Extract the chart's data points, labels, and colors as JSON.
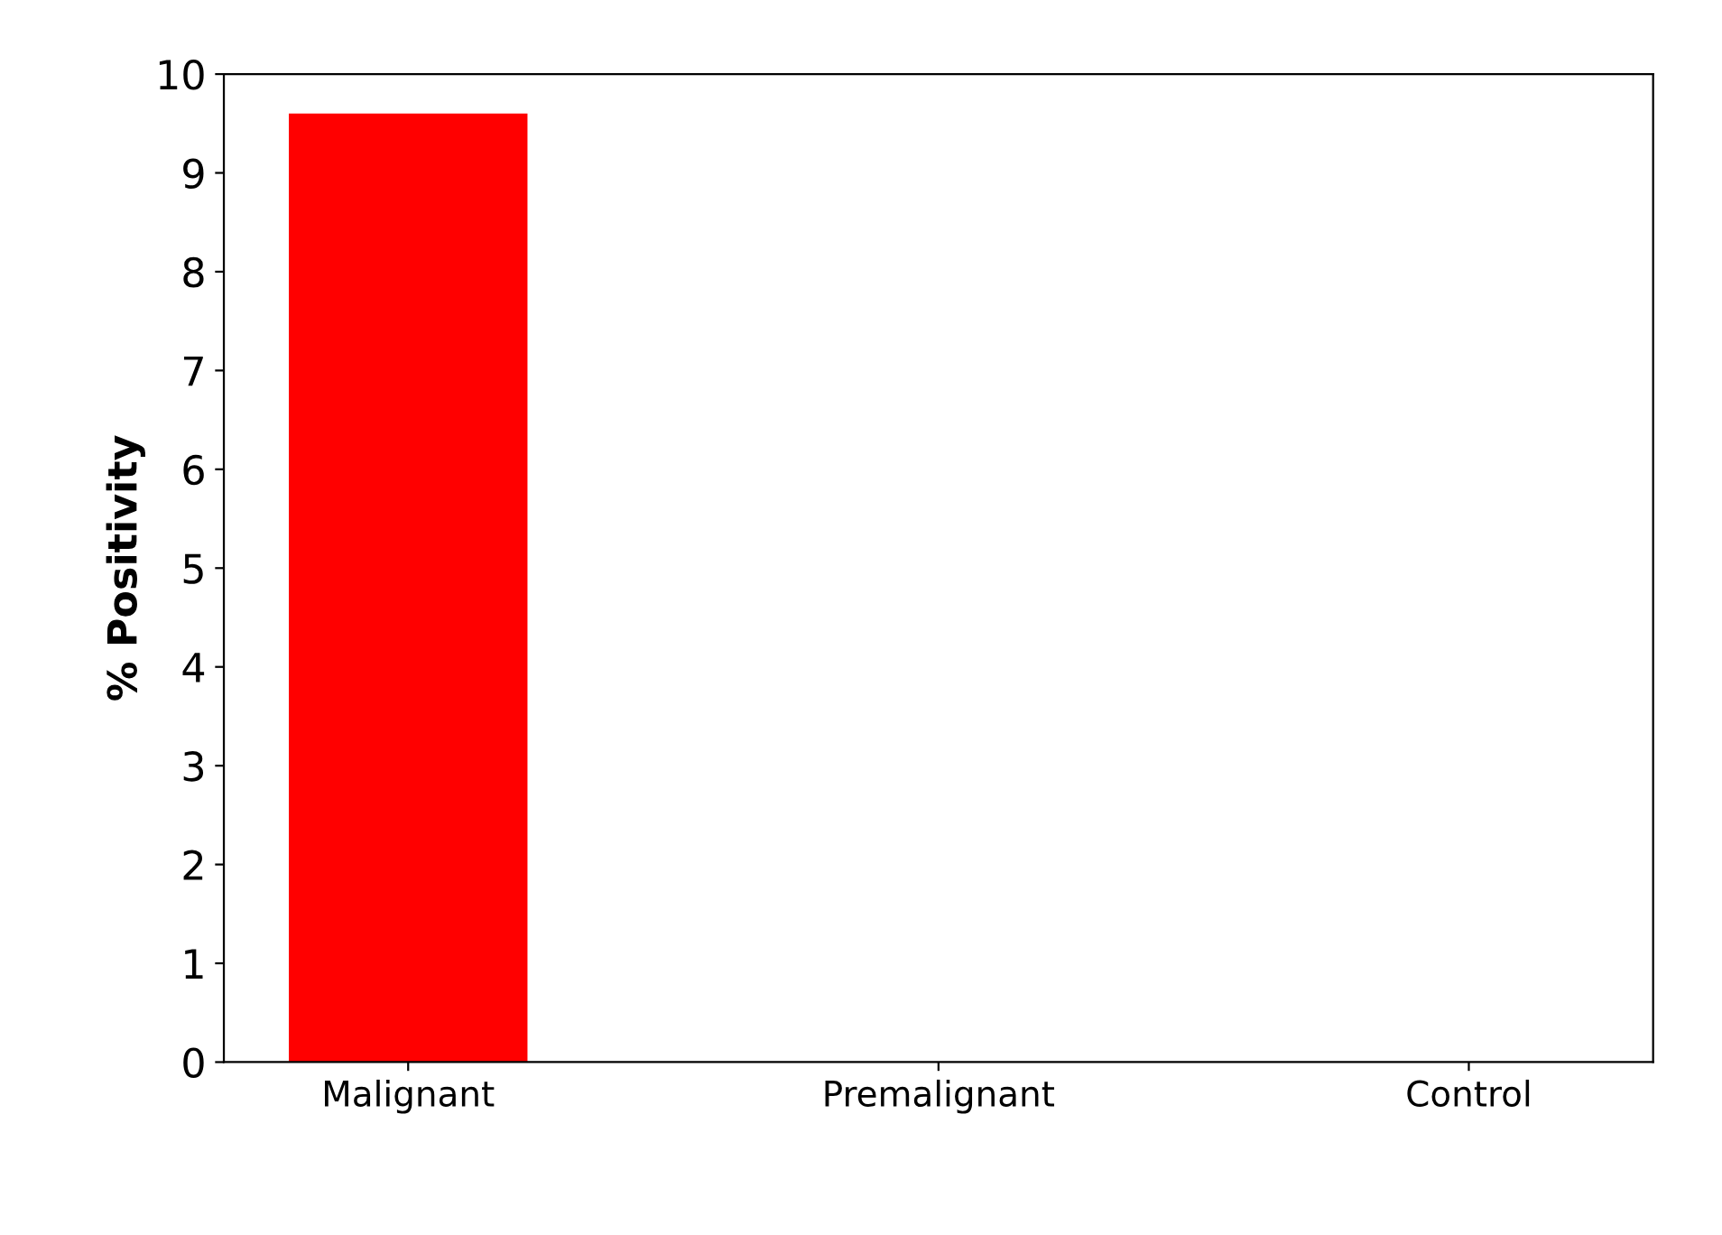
{
  "chart_data": {
    "type": "bar",
    "ylabel": "% Positivity",
    "categories": [
      "Malignant",
      "Premalignant",
      "Control"
    ],
    "values": [
      9.6,
      0,
      0
    ],
    "colors": [
      "#ff0000",
      "#c89000",
      "#c8c800"
    ],
    "ylim": [
      0,
      10
    ],
    "yticks": [
      0,
      1,
      2,
      3,
      4,
      5,
      6,
      7,
      8,
      9,
      10
    ],
    "grid": false
  }
}
